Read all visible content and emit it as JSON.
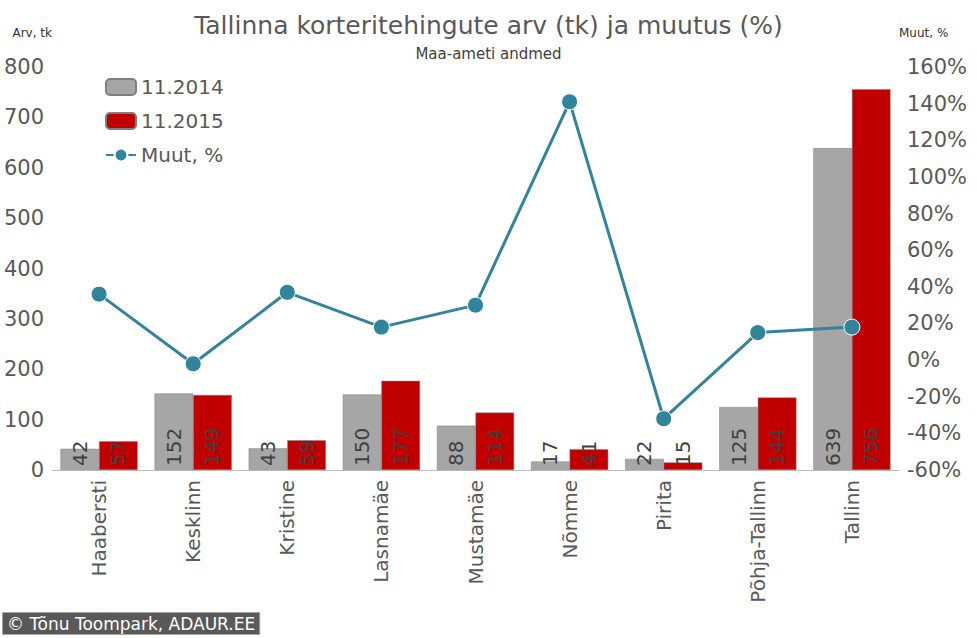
{
  "chart_data": {
    "type": "bar",
    "title": "Tallinna korteritehingute arv (tk) ja muutus (%)",
    "subtitle": "Maa-ameti andmed",
    "y_label": "Arv, tk",
    "y2_label": "Muut, %",
    "annotation": "© Tõnu Toompark, ADAUR.EE",
    "categories": [
      "Haabersti",
      "Kesklinn",
      "Kristine",
      "Lasnamäe",
      "Mustamäe",
      "Nõmme",
      "Pirita",
      "Põhja-Tallinn",
      "Tallinn"
    ],
    "series": [
      {
        "name": "11.2014",
        "type": "bar",
        "color": "#a6a6a6",
        "data_labels": true,
        "values": [
          42,
          152,
          43,
          150,
          88,
          17,
          22,
          125,
          639
        ]
      },
      {
        "name": "11.2015",
        "type": "bar",
        "color": "#c00000",
        "data_labels": true,
        "values": [
          57,
          149,
          59,
          177,
          114,
          41,
          15,
          144,
          756
        ]
      },
      {
        "name": "Muut, %",
        "type": "line",
        "color": "#31849b",
        "marker": "circle",
        "axis": "y2",
        "data_labels": false,
        "values": [
          36,
          -2,
          37,
          18,
          30,
          141,
          -32,
          15,
          18
        ]
      }
    ],
    "ylim": [
      0,
      800
    ],
    "yticks": [
      0,
      100,
      200,
      300,
      400,
      500,
      600,
      700,
      800
    ],
    "y2lim": [
      -60,
      160
    ],
    "y2ticks": [
      {
        "value": -60,
        "label": "-60%"
      },
      {
        "value": -40,
        "label": "-40%"
      },
      {
        "value": -20,
        "label": "-20%"
      },
      {
        "value": 0,
        "label": "0%"
      },
      {
        "value": 20,
        "label": "20%"
      },
      {
        "value": 40,
        "label": "40%"
      },
      {
        "value": 60,
        "label": "60%"
      },
      {
        "value": 80,
        "label": "80%"
      },
      {
        "value": 100,
        "label": "100%"
      },
      {
        "value": 120,
        "label": "120%"
      },
      {
        "value": 140,
        "label": "140%"
      },
      {
        "value": 160,
        "label": "160%"
      }
    ],
    "grid": false,
    "legend": "upper left"
  }
}
